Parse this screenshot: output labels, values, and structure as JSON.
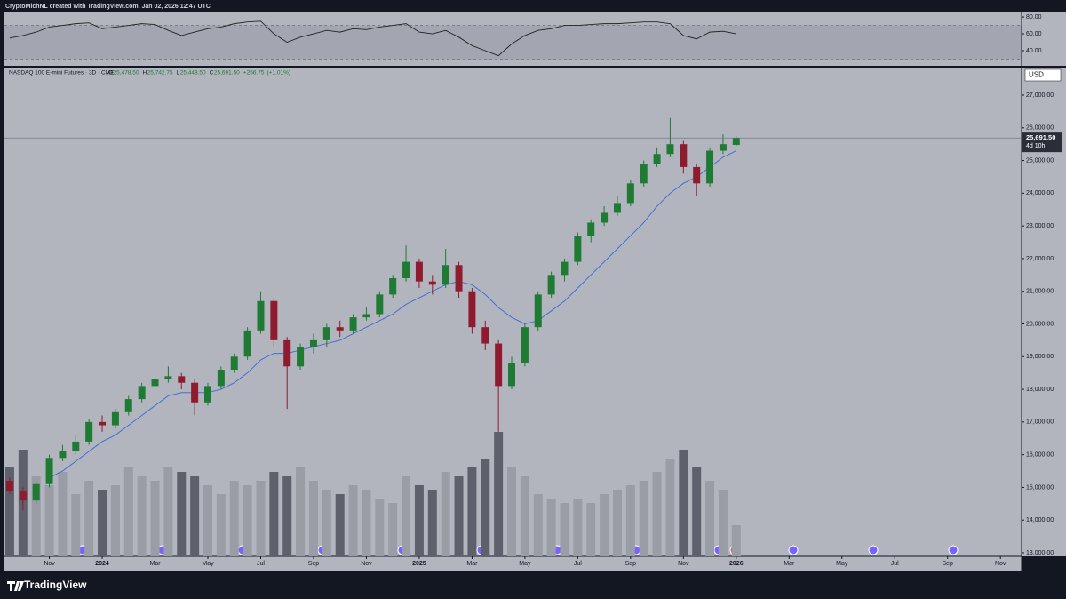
{
  "header": {
    "credit": "CryptoMichNL created with TradingView.com, Jan 02, 2026 12:47 UTC"
  },
  "footer": {
    "brand": "TradingView"
  },
  "chart_data": [
    {
      "type": "candlestick",
      "title": "NASDAQ 100 E-mini Futures · 3D · CME",
      "currency": "USD",
      "open": [
        15200,
        14900,
        14600,
        15100,
        15900,
        16100,
        16400,
        17000,
        16900,
        17300,
        17700,
        18100,
        18300,
        18400,
        18200,
        17600,
        18100,
        18600,
        19000,
        19800,
        20700,
        19500,
        18700,
        19300,
        19500,
        19900,
        19800,
        20200,
        20300,
        20900,
        21400,
        21900,
        21300,
        21200,
        21800,
        21000,
        19900,
        19400,
        18100,
        18800,
        19900,
        20900,
        21500,
        21900,
        22700,
        23100,
        23400,
        23700,
        24300,
        24900,
        25200,
        25500,
        24800,
        24300,
        25300,
        25478.5
      ],
      "high": [
        15300,
        15000,
        15200,
        16000,
        16300,
        16600,
        17100,
        17200,
        17400,
        17800,
        18200,
        18500,
        18700,
        18500,
        18300,
        18200,
        18700,
        19100,
        19900,
        21000,
        20800,
        19600,
        19400,
        19700,
        20000,
        20100,
        20300,
        20500,
        21000,
        21500,
        22400,
        22000,
        21500,
        22300,
        21900,
        21100,
        20100,
        19500,
        19000,
        20000,
        21000,
        21600,
        22000,
        22800,
        23200,
        23600,
        23900,
        24400,
        25000,
        25400,
        26300,
        25600,
        24900,
        25400,
        25800,
        25742.75
      ],
      "low": [
        14800,
        14300,
        14500,
        15000,
        15800,
        16000,
        16300,
        16700,
        16800,
        17200,
        17600,
        18000,
        18200,
        18000,
        17200,
        17500,
        18000,
        18500,
        18900,
        19700,
        19300,
        17400,
        18600,
        19100,
        19300,
        19600,
        19700,
        20100,
        20200,
        20800,
        21300,
        21100,
        20900,
        21100,
        20800,
        19700,
        19200,
        16700,
        18000,
        18700,
        19800,
        20800,
        21300,
        21800,
        22500,
        23000,
        23300,
        23600,
        24200,
        24800,
        25100,
        24600,
        23900,
        24200,
        25200,
        25448.5
      ],
      "close": [
        14900,
        14600,
        15100,
        15900,
        16100,
        16400,
        17000,
        16900,
        17300,
        17700,
        18100,
        18300,
        18400,
        18200,
        17600,
        18100,
        18600,
        19000,
        19800,
        20700,
        19500,
        18700,
        19300,
        19500,
        19900,
        19800,
        20200,
        20300,
        20900,
        21400,
        21900,
        21300,
        21200,
        21800,
        21000,
        19900,
        19400,
        18100,
        18800,
        19900,
        20900,
        21500,
        21900,
        22700,
        23100,
        23400,
        23700,
        24300,
        24900,
        25200,
        25500,
        24800,
        24300,
        25300,
        25500,
        25691.5
      ],
      "up_color": "#1f7a34",
      "down_color": "#8e1c2e",
      "ma": {
        "color": "#3f6fd8",
        "values": [
          null,
          null,
          null,
          15300,
          15500,
          15800,
          16100,
          16400,
          16600,
          16900,
          17200,
          17500,
          17800,
          17900,
          17900,
          17900,
          18000,
          18200,
          18500,
          18900,
          19100,
          19100,
          19200,
          19300,
          19400,
          19500,
          19700,
          19900,
          20100,
          20300,
          20600,
          20800,
          21000,
          21200,
          21300,
          21200,
          20900,
          20500,
          20200,
          20000,
          20100,
          20400,
          20700,
          21100,
          21500,
          21900,
          22300,
          22700,
          23100,
          23600,
          24000,
          24300,
          24500,
          24800,
          25100,
          25300
        ]
      },
      "volume": {
        "up_color": "#9a9da6",
        "down_color": "#5e616b",
        "values": [
          100,
          120,
          90,
          80,
          95,
          70,
          85,
          75,
          80,
          100,
          90,
          85,
          100,
          95,
          90,
          80,
          70,
          85,
          80,
          85,
          95,
          90,
          100,
          85,
          75,
          70,
          80,
          75,
          65,
          60,
          90,
          80,
          75,
          95,
          90,
          100,
          110,
          140,
          100,
          90,
          70,
          65,
          60,
          65,
          60,
          70,
          75,
          80,
          85,
          95,
          110,
          120,
          100,
          85,
          75,
          35
        ]
      },
      "last": {
        "prefixes": [
          "O",
          "H",
          "L",
          "C"
        ],
        "open": {
          "value": 25478.5,
          "label": "25,478.50"
        },
        "high": {
          "value": 25742.75,
          "label": "25,742.75"
        },
        "low": {
          "value": 25448.5,
          "label": "25,448.50"
        },
        "close": {
          "value": 25691.5,
          "label": "25,691.50"
        },
        "change": {
          "value": 256.75,
          "label": "+256.75"
        },
        "change_pct": {
          "value": 1.01,
          "label": "(+1.01%)"
        },
        "countdown": "4d 10h"
      },
      "ylim": [
        12891,
        27843
      ],
      "yticks": [
        {
          "value": 13000,
          "label": "13,000.00"
        },
        {
          "value": 14000,
          "label": "14,000.00"
        },
        {
          "value": 15000,
          "label": "15,000.00"
        },
        {
          "value": 16000,
          "label": "16,000.00"
        },
        {
          "value": 17000,
          "label": "17,000.00"
        },
        {
          "value": 18000,
          "label": "18,000.00"
        },
        {
          "value": 19000,
          "label": "19,000.00"
        },
        {
          "value": 20000,
          "label": "20,000.00"
        },
        {
          "value": 21000,
          "label": "21,000.00"
        },
        {
          "value": 22000,
          "label": "22,000.00"
        },
        {
          "value": 23000,
          "label": "23,000.00"
        },
        {
          "value": 24000,
          "label": "24,000.00"
        },
        {
          "value": 25000,
          "label": "25,000.00"
        },
        {
          "value": 26000,
          "label": "26,000.00"
        },
        {
          "value": 27000,
          "label": "27,000.00"
        }
      ],
      "xlim": [
        -0.4,
        76.6
      ],
      "xticks": [
        {
          "value": 3,
          "label": "Nov"
        },
        {
          "value": 7,
          "label": "2024"
        },
        {
          "value": 11,
          "label": "Mar"
        },
        {
          "value": 15,
          "label": "May"
        },
        {
          "value": 19,
          "label": "Jul"
        },
        {
          "value": 23,
          "label": "Sep"
        },
        {
          "value": 27,
          "label": "Nov"
        },
        {
          "value": 31,
          "label": "2025"
        },
        {
          "value": 35,
          "label": "Mar"
        },
        {
          "value": 39,
          "label": "May"
        },
        {
          "value": 43,
          "label": "Jul"
        },
        {
          "value": 47,
          "label": "Sep"
        },
        {
          "value": 51,
          "label": "Nov"
        },
        {
          "value": 55,
          "label": "2026"
        },
        {
          "value": 59,
          "label": "Mar"
        },
        {
          "value": 63,
          "label": "May"
        },
        {
          "value": 67,
          "label": "Jul"
        },
        {
          "value": 71,
          "label": "Sep"
        },
        {
          "value": 75,
          "label": "Nov"
        }
      ]
    },
    {
      "type": "line",
      "color": "#222222",
      "values": [
        55,
        58,
        62,
        68,
        70,
        72,
        73,
        66,
        68,
        70,
        72,
        71,
        64,
        58,
        62,
        66,
        68,
        72,
        74,
        75,
        60,
        50,
        56,
        60,
        64,
        62,
        66,
        65,
        68,
        70,
        72,
        62,
        60,
        64,
        56,
        46,
        40,
        34,
        48,
        58,
        64,
        66,
        70,
        70,
        71,
        72,
        72,
        73,
        74,
        74,
        72,
        58,
        54,
        62,
        63,
        60
      ],
      "band": [
        30,
        70
      ],
      "ylim": [
        22.1,
        85.3
      ],
      "yticks": [
        {
          "value": 80,
          "label": "80.00"
        },
        {
          "value": 60,
          "label": "60.00"
        },
        {
          "value": 40,
          "label": "40.00"
        }
      ]
    }
  ]
}
